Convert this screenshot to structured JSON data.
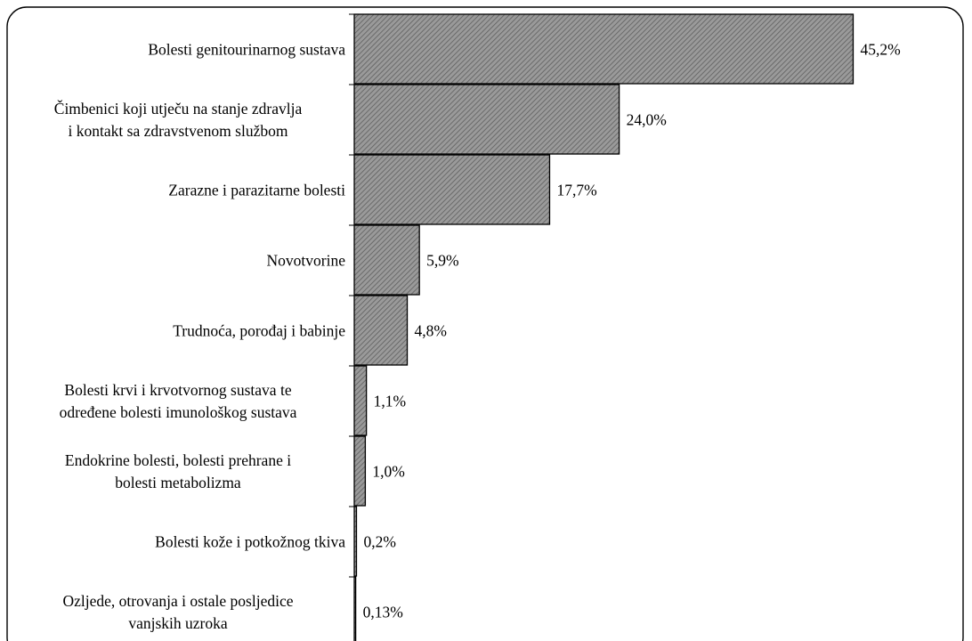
{
  "chart_data": {
    "type": "bar",
    "orientation": "horizontal",
    "categories": [
      [
        "Bolesti genitourinarnog sustava"
      ],
      [
        "Čimbenici koji utječu na stanje zdravlja",
        "i kontakt sa zdravstvenom službom"
      ],
      [
        "Zarazne i parazitarne bolesti"
      ],
      [
        "Novotvorine"
      ],
      [
        "Trudnoća, porođaj i babinje"
      ],
      [
        "Bolesti krvi i krvotvornog sustava te",
        "određene bolesti imunološkog sustava"
      ],
      [
        "Endokrine bolesti, bolesti prehrane i",
        "bolesti metabolizma"
      ],
      [
        "Bolesti kože i potkožnog tkiva"
      ],
      [
        "Ozljede, otrovanja i ostale posljedice",
        "vanjskih uzroka"
      ]
    ],
    "values": [
      45.2,
      24.0,
      17.7,
      5.9,
      4.8,
      1.1,
      1.0,
      0.2,
      0.13
    ],
    "value_labels": [
      "45,2%",
      "24,0%",
      "17,7%",
      "5,9%",
      "4,8%",
      "1,1%",
      "1,0%",
      "0,2%",
      "0,13%"
    ],
    "unit": "%",
    "xlim": [
      0,
      50
    ],
    "bar_fill": "#8f8f8f",
    "bar_pattern": "diagonal-hatch",
    "bar_stroke": "#000000",
    "grid": false,
    "legend": false
  }
}
